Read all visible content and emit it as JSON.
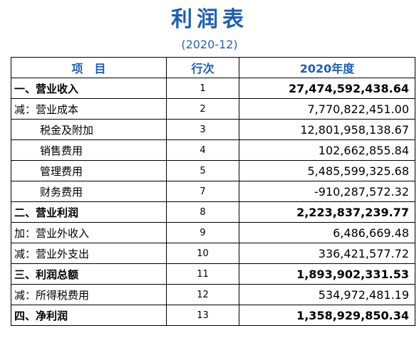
{
  "title": "利润表",
  "period": "(2020-12)",
  "columns": {
    "item": "项　目",
    "row_no": "行次",
    "amount": "2020年度"
  },
  "rows": [
    {
      "item": "一、营业收入",
      "row_no": "1",
      "amount": "27,474,592,438.64"
    },
    {
      "item": "减：营业成本",
      "row_no": "2",
      "amount": "7,770,822,451.00"
    },
    {
      "item": "税金及附加",
      "row_no": "3",
      "amount": "12,801,958,138.67"
    },
    {
      "item": "销售费用",
      "row_no": "4",
      "amount": "102,662,855.84"
    },
    {
      "item": "管理费用",
      "row_no": "5",
      "amount": "5,485,599,325.68"
    },
    {
      "item": "财务费用",
      "row_no": "7",
      "amount": "-910,287,572.32"
    },
    {
      "item": "二、营业利润",
      "row_no": "8",
      "amount": "2,223,837,239.77"
    },
    {
      "item": "加：营业外收入",
      "row_no": "9",
      "amount": "6,486,669.48"
    },
    {
      "item": "减：营业外支出",
      "row_no": "10",
      "amount": "336,421,577.72"
    },
    {
      "item": "三、利润总额",
      "row_no": "11",
      "amount": "1,893,902,331.53"
    },
    {
      "item": "减：所得税费用",
      "row_no": "12",
      "amount": "534,972,481.19"
    },
    {
      "item": "四、净利润",
      "row_no": "13",
      "amount": "1,358,929,850.34"
    }
  ]
}
